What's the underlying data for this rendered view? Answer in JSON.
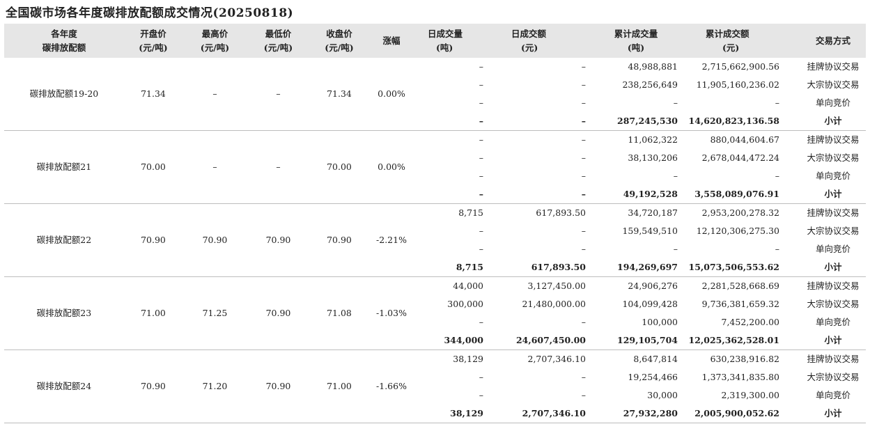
{
  "title": "全国碳市场各年度碳排放配额成交情况(20250818)",
  "headers": {
    "year": [
      "各年度",
      "碳排放配额"
    ],
    "open": [
      "开盘价",
      "(元/吨)"
    ],
    "high": [
      "最高价",
      "(元/吨)"
    ],
    "low": [
      "最低价",
      "(元/吨)"
    ],
    "close": [
      "收盘价",
      "(元/吨)"
    ],
    "change": [
      "涨幅"
    ],
    "daily_vol": [
      "日成交量",
      "(吨)"
    ],
    "daily_amt": [
      "日成交额",
      "(元)"
    ],
    "cum_vol": [
      "累计成交量",
      "(吨)"
    ],
    "cum_amt": [
      "累计成交额",
      "(元)"
    ],
    "method": [
      "交易方式"
    ]
  },
  "groups": [
    {
      "name": "碳排放配额19-20",
      "open": "71.34",
      "high": "–",
      "low": "–",
      "close": "71.34",
      "change": "0.00%",
      "rows": [
        {
          "daily_vol": "–",
          "daily_amt": "–",
          "cum_vol": "48,988,881",
          "cum_amt": "2,715,662,900.56",
          "method": "挂牌协议交易"
        },
        {
          "daily_vol": "–",
          "daily_amt": "–",
          "cum_vol": "238,256,649",
          "cum_amt": "11,905,160,236.02",
          "method": "大宗协议交易"
        },
        {
          "daily_vol": "–",
          "daily_amt": "–",
          "cum_vol": "–",
          "cum_amt": "–",
          "method": "单向竞价"
        },
        {
          "daily_vol": "–",
          "daily_amt": "–",
          "cum_vol": "287,245,530",
          "cum_amt": "14,620,823,136.58",
          "method": "小计"
        }
      ]
    },
    {
      "name": "碳排放配额21",
      "open": "70.00",
      "high": "–",
      "low": "–",
      "close": "70.00",
      "change": "0.00%",
      "rows": [
        {
          "daily_vol": "–",
          "daily_amt": "–",
          "cum_vol": "11,062,322",
          "cum_amt": "880,044,604.67",
          "method": "挂牌协议交易"
        },
        {
          "daily_vol": "–",
          "daily_amt": "–",
          "cum_vol": "38,130,206",
          "cum_amt": "2,678,044,472.24",
          "method": "大宗协议交易"
        },
        {
          "daily_vol": "–",
          "daily_amt": "–",
          "cum_vol": "–",
          "cum_amt": "–",
          "method": "单向竞价"
        },
        {
          "daily_vol": "–",
          "daily_amt": "–",
          "cum_vol": "49,192,528",
          "cum_amt": "3,558,089,076.91",
          "method": "小计"
        }
      ]
    },
    {
      "name": "碳排放配额22",
      "open": "70.90",
      "high": "70.90",
      "low": "70.90",
      "close": "70.90",
      "change": "-2.21%",
      "rows": [
        {
          "daily_vol": "8,715",
          "daily_amt": "617,893.50",
          "cum_vol": "34,720,187",
          "cum_amt": "2,953,200,278.32",
          "method": "挂牌协议交易"
        },
        {
          "daily_vol": "–",
          "daily_amt": "–",
          "cum_vol": "159,549,510",
          "cum_amt": "12,120,306,275.30",
          "method": "大宗协议交易"
        },
        {
          "daily_vol": "–",
          "daily_amt": "–",
          "cum_vol": "–",
          "cum_amt": "–",
          "method": "单向竞价"
        },
        {
          "daily_vol": "8,715",
          "daily_amt": "617,893.50",
          "cum_vol": "194,269,697",
          "cum_amt": "15,073,506,553.62",
          "method": "小计"
        }
      ]
    },
    {
      "name": "碳排放配额23",
      "open": "71.00",
      "high": "71.25",
      "low": "70.90",
      "close": "71.08",
      "change": "-1.03%",
      "rows": [
        {
          "daily_vol": "44,000",
          "daily_amt": "3,127,450.00",
          "cum_vol": "24,906,276",
          "cum_amt": "2,281,528,668.69",
          "method": "挂牌协议交易"
        },
        {
          "daily_vol": "300,000",
          "daily_amt": "21,480,000.00",
          "cum_vol": "104,099,428",
          "cum_amt": "9,736,381,659.32",
          "method": "大宗协议交易"
        },
        {
          "daily_vol": "–",
          "daily_amt": "–",
          "cum_vol": "100,000",
          "cum_amt": "7,452,200.00",
          "method": "单向竞价"
        },
        {
          "daily_vol": "344,000",
          "daily_amt": "24,607,450.00",
          "cum_vol": "129,105,704",
          "cum_amt": "12,025,362,528.01",
          "method": "小计"
        }
      ]
    },
    {
      "name": "碳排放配额24",
      "open": "70.90",
      "high": "71.20",
      "low": "70.90",
      "close": "71.00",
      "change": "-1.66%",
      "rows": [
        {
          "daily_vol": "38,129",
          "daily_amt": "2,707,346.10",
          "cum_vol": "8,647,814",
          "cum_amt": "630,238,916.82",
          "method": "挂牌协议交易"
        },
        {
          "daily_vol": "–",
          "daily_amt": "–",
          "cum_vol": "19,254,466",
          "cum_amt": "1,373,341,835.80",
          "method": "大宗协议交易"
        },
        {
          "daily_vol": "–",
          "daily_amt": "–",
          "cum_vol": "30,000",
          "cum_amt": "2,319,300.00",
          "method": "单向竞价"
        },
        {
          "daily_vol": "38,129",
          "daily_amt": "2,707,346.10",
          "cum_vol": "27,932,280",
          "cum_amt": "2,005,900,052.62",
          "method": "小计"
        }
      ]
    }
  ]
}
